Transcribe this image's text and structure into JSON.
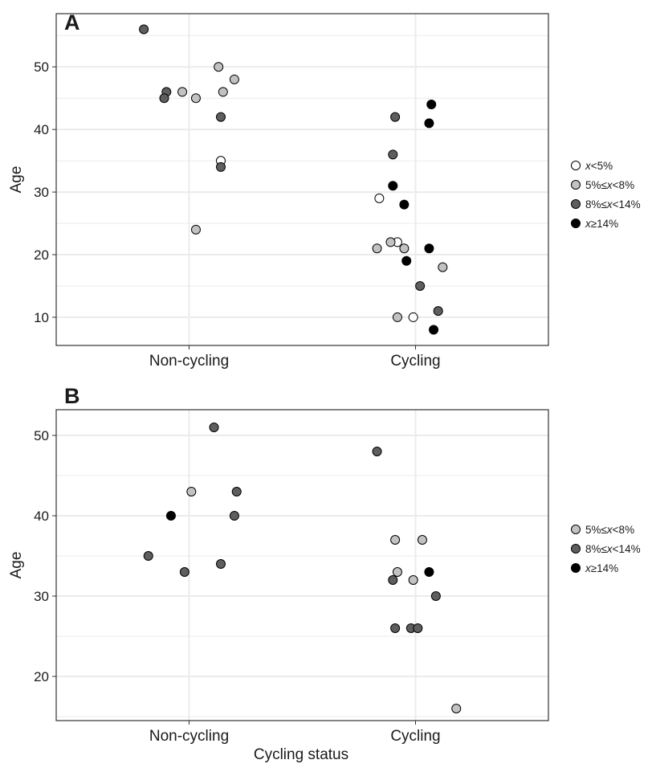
{
  "figure": {
    "xlabel": "Cycling status"
  },
  "colors": {
    "lt5": "#ffffff",
    "5to8": "#c2c2c2",
    "8to14": "#5e5e5e",
    "ge14": "#000000",
    "gridline": "#ebebeb",
    "frame": "#333333",
    "text": "#1a1a1a"
  },
  "chart_data": [
    {
      "panel": "A",
      "type": "scatter",
      "jitter": true,
      "categories": [
        "Non-cycling",
        "Cycling"
      ],
      "ylabel": "Age",
      "xlabel": "",
      "ylim": [
        5.5,
        58.5
      ],
      "yticks": [
        10,
        20,
        30,
        40,
        50
      ],
      "grid": true,
      "legend_position": "right",
      "legend": [
        {
          "key": "lt5",
          "prefix": "",
          "var": "x",
          "suffix": "<5%"
        },
        {
          "key": "5to8",
          "prefix": "5%≤",
          "var": "x",
          "suffix": "<8%"
        },
        {
          "key": "8to14",
          "prefix": "8%≤",
          "var": "x",
          "suffix": "<14%"
        },
        {
          "key": "ge14",
          "prefix": "",
          "var": "x",
          "suffix": "≥14%"
        }
      ],
      "series": [
        {
          "group": "lt5",
          "points": [
            {
              "x": "Non-cycling",
              "y": 35,
              "jitter": 0.14
            },
            {
              "x": "Cycling",
              "y": 29,
              "jitter": -0.16
            },
            {
              "x": "Cycling",
              "y": 22,
              "jitter": -0.08
            },
            {
              "x": "Cycling",
              "y": 10,
              "jitter": -0.01
            }
          ]
        },
        {
          "group": "5to8",
          "points": [
            {
              "x": "Non-cycling",
              "y": 50,
              "jitter": 0.13
            },
            {
              "x": "Non-cycling",
              "y": 48,
              "jitter": 0.2
            },
            {
              "x": "Non-cycling",
              "y": 46,
              "jitter": -0.03
            },
            {
              "x": "Non-cycling",
              "y": 46,
              "jitter": 0.15
            },
            {
              "x": "Non-cycling",
              "y": 45,
              "jitter": 0.03
            },
            {
              "x": "Non-cycling",
              "y": 24,
              "jitter": 0.03
            },
            {
              "x": "Cycling",
              "y": 22,
              "jitter": -0.11
            },
            {
              "x": "Cycling",
              "y": 21,
              "jitter": -0.17
            },
            {
              "x": "Cycling",
              "y": 21,
              "jitter": -0.05
            },
            {
              "x": "Cycling",
              "y": 18,
              "jitter": 0.12
            },
            {
              "x": "Cycling",
              "y": 10,
              "jitter": -0.08
            }
          ]
        },
        {
          "group": "8to14",
          "points": [
            {
              "x": "Non-cycling",
              "y": 56,
              "jitter": -0.2
            },
            {
              "x": "Non-cycling",
              "y": 46,
              "jitter": -0.1
            },
            {
              "x": "Non-cycling",
              "y": 45,
              "jitter": -0.11
            },
            {
              "x": "Non-cycling",
              "y": 42,
              "jitter": 0.14
            },
            {
              "x": "Non-cycling",
              "y": 34,
              "jitter": 0.14
            },
            {
              "x": "Cycling",
              "y": 42,
              "jitter": -0.09
            },
            {
              "x": "Cycling",
              "y": 36,
              "jitter": -0.1
            },
            {
              "x": "Cycling",
              "y": 15,
              "jitter": 0.02
            },
            {
              "x": "Cycling",
              "y": 11,
              "jitter": 0.1
            }
          ]
        },
        {
          "group": "ge14",
          "points": [
            {
              "x": "Cycling",
              "y": 44,
              "jitter": 0.07
            },
            {
              "x": "Cycling",
              "y": 41,
              "jitter": 0.06
            },
            {
              "x": "Cycling",
              "y": 31,
              "jitter": -0.1
            },
            {
              "x": "Cycling",
              "y": 28,
              "jitter": -0.05
            },
            {
              "x": "Cycling",
              "y": 21,
              "jitter": 0.06
            },
            {
              "x": "Cycling",
              "y": 19,
              "jitter": -0.04
            },
            {
              "x": "Cycling",
              "y": 8,
              "jitter": 0.08
            }
          ]
        }
      ]
    },
    {
      "panel": "B",
      "type": "scatter",
      "jitter": true,
      "categories": [
        "Non-cycling",
        "Cycling"
      ],
      "ylabel": "Age",
      "xlabel": "Cycling status",
      "ylim": [
        14.5,
        53.2
      ],
      "yticks": [
        20,
        30,
        40,
        50
      ],
      "grid": true,
      "legend_position": "right",
      "legend": [
        {
          "key": "5to8",
          "prefix": "5%≤",
          "var": "x",
          "suffix": "<8%"
        },
        {
          "key": "8to14",
          "prefix": "8%≤",
          "var": "x",
          "suffix": "<14%"
        },
        {
          "key": "ge14",
          "prefix": "",
          "var": "x",
          "suffix": "≥14%"
        }
      ],
      "series": [
        {
          "group": "5to8",
          "points": [
            {
              "x": "Non-cycling",
              "y": 43,
              "jitter": 0.01
            },
            {
              "x": "Cycling",
              "y": 37,
              "jitter": -0.09
            },
            {
              "x": "Cycling",
              "y": 37,
              "jitter": 0.03
            },
            {
              "x": "Cycling",
              "y": 33,
              "jitter": -0.08
            },
            {
              "x": "Cycling",
              "y": 32,
              "jitter": -0.01
            },
            {
              "x": "Cycling",
              "y": 16,
              "jitter": 0.18
            }
          ]
        },
        {
          "group": "8to14",
          "points": [
            {
              "x": "Non-cycling",
              "y": 51,
              "jitter": 0.11
            },
            {
              "x": "Non-cycling",
              "y": 43,
              "jitter": 0.21
            },
            {
              "x": "Non-cycling",
              "y": 40,
              "jitter": 0.2
            },
            {
              "x": "Non-cycling",
              "y": 35,
              "jitter": -0.18
            },
            {
              "x": "Non-cycling",
              "y": 34,
              "jitter": 0.14
            },
            {
              "x": "Non-cycling",
              "y": 33,
              "jitter": -0.02
            },
            {
              "x": "Cycling",
              "y": 48,
              "jitter": -0.17
            },
            {
              "x": "Cycling",
              "y": 32,
              "jitter": -0.1
            },
            {
              "x": "Cycling",
              "y": 30,
              "jitter": 0.09
            },
            {
              "x": "Cycling",
              "y": 26,
              "jitter": -0.09
            },
            {
              "x": "Cycling",
              "y": 26,
              "jitter": -0.02
            },
            {
              "x": "Cycling",
              "y": 26,
              "jitter": 0.01
            }
          ]
        },
        {
          "group": "ge14",
          "points": [
            {
              "x": "Non-cycling",
              "y": 40,
              "jitter": -0.08
            },
            {
              "x": "Cycling",
              "y": 33,
              "jitter": 0.06
            }
          ]
        }
      ]
    }
  ]
}
